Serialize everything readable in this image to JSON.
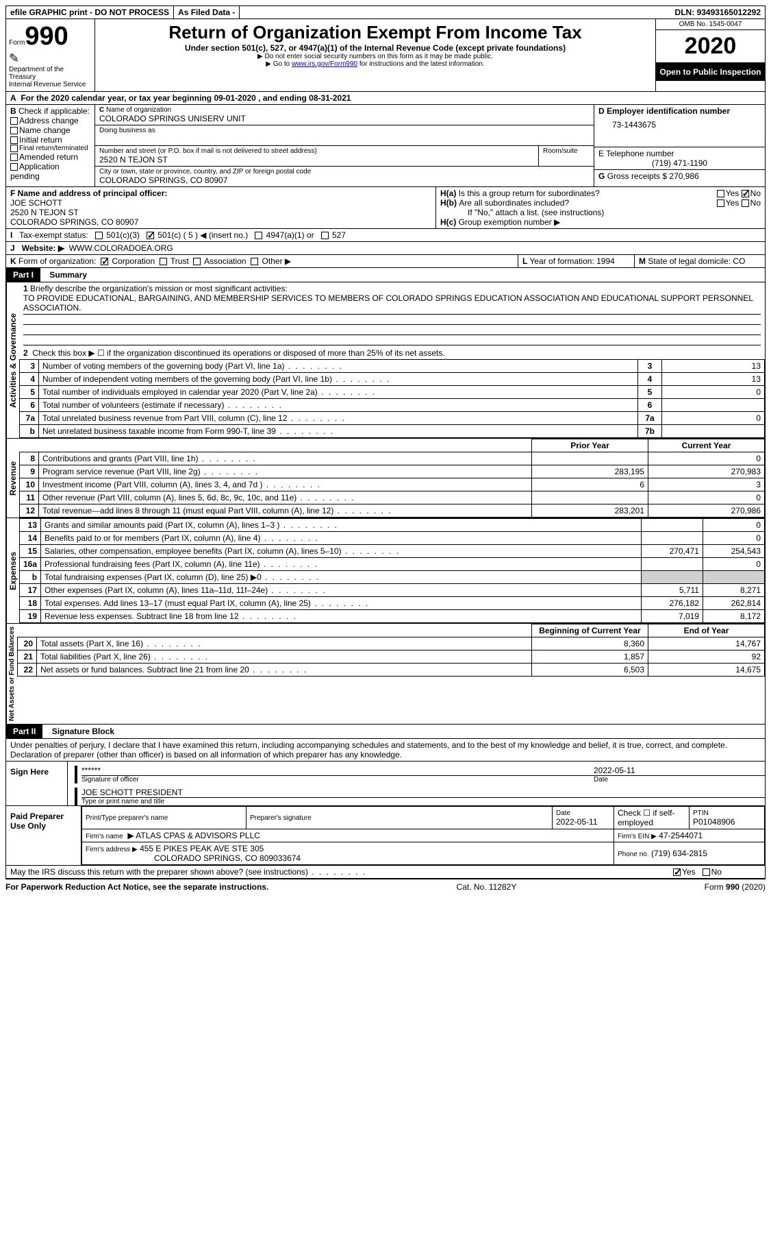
{
  "topbar": {
    "efile": "efile GRAPHIC print - DO NOT PROCESS",
    "asfiled": "As Filed Data -",
    "dln_label": "DLN:",
    "dln": "93493165012292"
  },
  "header": {
    "form_word": "Form",
    "form_num": "990",
    "dept1": "Department of the",
    "dept2": "Treasury",
    "dept3": "Internal Revenue Service",
    "title": "Return of Organization Exempt From Income Tax",
    "sub1": "Under section 501(c), 527, or 4947(a)(1) of the Internal Revenue Code (except private foundations)",
    "sub2": "Do not enter social security numbers on this form as it may be made public.",
    "sub3_pre": "Go to ",
    "sub3_link": "www.irs.gov/Form990",
    "sub3_post": " for instructions and the latest information.",
    "omb": "OMB No. 1545-0047",
    "year": "2020",
    "open": "Open to Public Inspection"
  },
  "lineA": "For the 2020 calendar year, or tax year beginning 09-01-2020   , and ending 08-31-2021",
  "boxB": {
    "title": "Check if applicable:",
    "items": [
      "Address change",
      "Name change",
      "Initial return",
      "Final return/terminated",
      "Amended return",
      "Application pending"
    ]
  },
  "boxC": {
    "label_name": "Name of organization",
    "name": "COLORADO SPRINGS UNISERV UNIT",
    "dba_label": "Doing business as",
    "dba": "",
    "street_label": "Number and street (or P.O. box if mail is not delivered to street address)",
    "street": "2520 N TEJON ST",
    "room_label": "Room/suite",
    "city_label": "City or town, state or province, country, and ZIP or foreign postal code",
    "city": "COLORADO SPRINGS, CO  80907"
  },
  "boxD": {
    "label": "D Employer identification number",
    "value": "73-1443675"
  },
  "boxE": {
    "label": "E Telephone number",
    "value": "(719) 471-1190"
  },
  "boxG": {
    "label": "G",
    "text": "Gross receipts $",
    "value": "270,986"
  },
  "boxF": {
    "label": "F  Name and address of principal officer:",
    "name": "JOE SCHOTT",
    "street": "2520 N TEJON ST",
    "city": "COLORADO SPRINGS, CO  80907"
  },
  "boxH": {
    "a_label": "H(a)",
    "a_text": "Is this a group return for subordinates?",
    "b_label": "H(b)",
    "b_text": "Are all subordinates included?",
    "note": "If \"No,\" attach a list. (see instructions)",
    "c_label": "H(c)",
    "c_text": "Group exemption number",
    "yes": "Yes",
    "no": "No"
  },
  "lineI": {
    "label": "I",
    "text": "Tax-exempt status:",
    "opts": [
      "501(c)(3)",
      "501(c) ( 5 ) ◀ (insert no.)",
      "4947(a)(1) or",
      "527"
    ]
  },
  "lineJ": {
    "label": "J",
    "text": "Website: ▶",
    "value": "WWW.COLORADOEA.ORG"
  },
  "lineK": {
    "label": "K",
    "text": "Form of organization:",
    "opts": [
      "Corporation",
      "Trust",
      "Association",
      "Other ▶"
    ]
  },
  "lineL": {
    "label": "L",
    "text": "Year of formation:",
    "value": "1994"
  },
  "lineM": {
    "label": "M",
    "text": "State of legal domicile:",
    "value": "CO"
  },
  "part1": {
    "tag": "Part I",
    "title": "Summary"
  },
  "mission": {
    "q": "Briefly describe the organization's mission or most significant activities:",
    "text": "TO PROVIDE EDUCATIONAL, BARGAINING, AND MEMBERSHIP SERVICES TO MEMBERS OF COLORADO SPRINGS EDUCATION ASSOCIATION AND EDUCATIONAL SUPPORT PERSONNEL ASSOCIATION."
  },
  "line2": "Check this box ▶ ☐ if the organization discontinued its operations or disposed of more than 25% of its net assets.",
  "gov_rows": [
    {
      "n": "3",
      "d": "Number of voting members of the governing body (Part VI, line 1a)",
      "k": "3",
      "v": "13"
    },
    {
      "n": "4",
      "d": "Number of independent voting members of the governing body (Part VI, line 1b)",
      "k": "4",
      "v": "13"
    },
    {
      "n": "5",
      "d": "Total number of individuals employed in calendar year 2020 (Part V, line 2a)",
      "k": "5",
      "v": "0"
    },
    {
      "n": "6",
      "d": "Total number of volunteers (estimate if necessary)",
      "k": "6",
      "v": ""
    },
    {
      "n": "7a",
      "d": "Total unrelated business revenue from Part VIII, column (C), line 12",
      "k": "7a",
      "v": "0"
    },
    {
      "n": "b",
      "d": "Net unrelated business taxable income from Form 990-T, line 39",
      "k": "7b",
      "v": ""
    }
  ],
  "col_headers": {
    "prior": "Prior Year",
    "current": "Current Year",
    "boy": "Beginning of Current Year",
    "eoy": "End of Year"
  },
  "rev_rows": [
    {
      "n": "8",
      "d": "Contributions and grants (Part VIII, line 1h)",
      "p": "",
      "c": "0"
    },
    {
      "n": "9",
      "d": "Program service revenue (Part VIII, line 2g)",
      "p": "283,195",
      "c": "270,983"
    },
    {
      "n": "10",
      "d": "Investment income (Part VIII, column (A), lines 3, 4, and 7d )",
      "p": "6",
      "c": "3"
    },
    {
      "n": "11",
      "d": "Other revenue (Part VIII, column (A), lines 5, 6d, 8c, 9c, 10c, and 11e)",
      "p": "",
      "c": "0"
    },
    {
      "n": "12",
      "d": "Total revenue—add lines 8 through 11 (must equal Part VIII, column (A), line 12)",
      "p": "283,201",
      "c": "270,986"
    }
  ],
  "exp_rows": [
    {
      "n": "13",
      "d": "Grants and similar amounts paid (Part IX, column (A), lines 1–3 )",
      "p": "",
      "c": "0"
    },
    {
      "n": "14",
      "d": "Benefits paid to or for members (Part IX, column (A), line 4)",
      "p": "",
      "c": "0"
    },
    {
      "n": "15",
      "d": "Salaries, other compensation, employee benefits (Part IX, column (A), lines 5–10)",
      "p": "270,471",
      "c": "254,543"
    },
    {
      "n": "16a",
      "d": "Professional fundraising fees (Part IX, column (A), line 11e)",
      "p": "",
      "c": "0"
    },
    {
      "n": "b",
      "d": "Total fundraising expenses (Part IX, column (D), line 25) ▶0",
      "p": "__SHADE__",
      "c": "__SHADE__"
    },
    {
      "n": "17",
      "d": "Other expenses (Part IX, column (A), lines 11a–11d, 11f–24e)",
      "p": "5,711",
      "c": "8,271"
    },
    {
      "n": "18",
      "d": "Total expenses. Add lines 13–17 (must equal Part IX, column (A), line 25)",
      "p": "276,182",
      "c": "262,814"
    },
    {
      "n": "19",
      "d": "Revenue less expenses. Subtract line 18 from line 12",
      "p": "7,019",
      "c": "8,172"
    }
  ],
  "net_rows": [
    {
      "n": "20",
      "d": "Total assets (Part X, line 16)",
      "p": "8,360",
      "c": "14,767"
    },
    {
      "n": "21",
      "d": "Total liabilities (Part X, line 26)",
      "p": "1,857",
      "c": "92"
    },
    {
      "n": "22",
      "d": "Net assets or fund balances. Subtract line 21 from line 20",
      "p": "6,503",
      "c": "14,675"
    }
  ],
  "vlabels": {
    "gov": "Activities & Governance",
    "rev": "Revenue",
    "exp": "Expenses",
    "net": "Net Assets or Fund Balances"
  },
  "part2": {
    "tag": "Part II",
    "title": "Signature Block"
  },
  "perjury": "Under penalties of perjury, I declare that I have examined this return, including accompanying schedules and statements, and to the best of my knowledge and belief, it is true, correct, and complete. Declaration of preparer (other than officer) is based on all information of which preparer has any knowledge.",
  "sign": {
    "here": "Sign Here",
    "stars": "******",
    "sig_label": "Signature of officer",
    "date": "2022-05-11",
    "date_label": "Date",
    "name": "JOE SCHOTT  PRESIDENT",
    "name_label": "Type or print name and title"
  },
  "preparer": {
    "label": "Paid Preparer Use Only",
    "h1": "Print/Type preparer's name",
    "h2": "Preparer's signature",
    "h3": "Date",
    "h3v": "2022-05-11",
    "h4": "Check ☐ if self-employed",
    "h5": "PTIN",
    "h5v": "P01048906",
    "firm_label": "Firm's name",
    "firm": "ATLAS CPAS & ADVISORS PLLC",
    "ein_label": "Firm's EIN ▶",
    "ein": "47-2544071",
    "addr_label": "Firm's address ▶",
    "addr1": "455 E PIKES PEAK AVE STE 305",
    "addr2": "COLORADO SPRINGS, CO  809033674",
    "phone_label": "Phone no.",
    "phone": "(719) 634-2815"
  },
  "discuss": {
    "q": "May the IRS discuss this return with the preparer shown above? (see instructions)",
    "yes": "Yes",
    "no": "No"
  },
  "footer": {
    "left": "For Paperwork Reduction Act Notice, see the separate instructions.",
    "mid": "Cat. No. 11282Y",
    "right_pre": "Form ",
    "right_b": "990",
    "right_post": " (2020)"
  }
}
